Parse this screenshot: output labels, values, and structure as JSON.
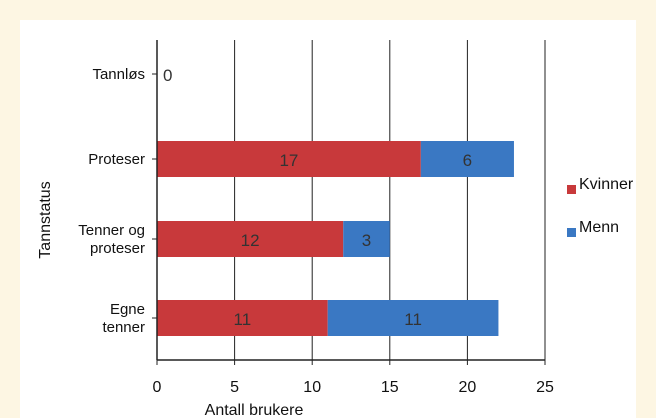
{
  "chart_data": {
    "type": "bar",
    "orientation": "horizontal",
    "stacked": true,
    "categories": [
      "Tannløs",
      "Proteser",
      "Tenner og proteser",
      "Egne tenner"
    ],
    "category_lines": [
      [
        "Tannløs"
      ],
      [
        "Proteser"
      ],
      [
        "Tenner og",
        "proteser"
      ],
      [
        "Egne",
        "tenner"
      ]
    ],
    "series": [
      {
        "name": "Kvinner",
        "values": [
          0,
          17,
          12,
          11
        ],
        "color": "#c8393b"
      },
      {
        "name": "Menn",
        "values": [
          0,
          6,
          3,
          11
        ],
        "color": "#3a78c3"
      }
    ],
    "zero_label": "0",
    "xlabel": "Antall brukere",
    "ylabel": "Tannstatus",
    "xlim": [
      0,
      25
    ],
    "xticks": [
      0,
      5,
      10,
      15,
      20,
      25
    ],
    "grid": "vertical",
    "legend": "right"
  }
}
